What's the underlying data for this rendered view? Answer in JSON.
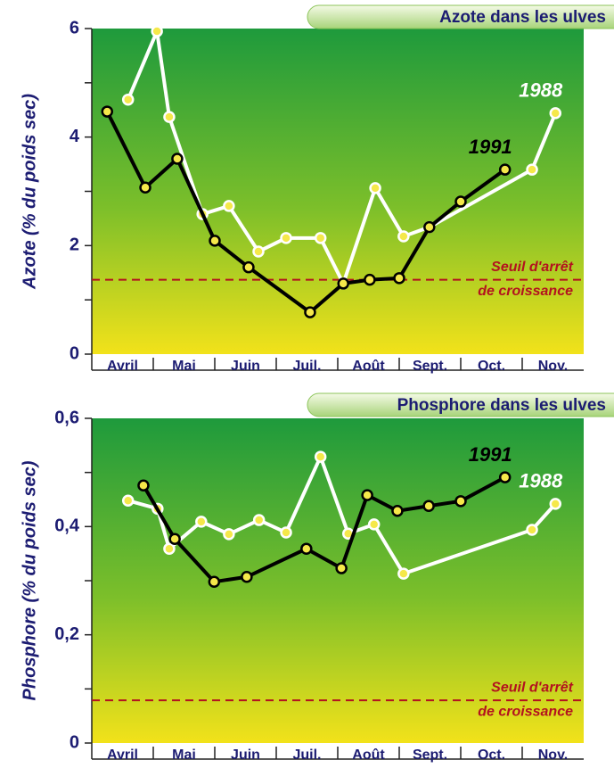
{
  "chart_data": [
    {
      "type": "line",
      "title": "Azote dans les ulves",
      "ylabel": "Azote (% du poids sec)",
      "categories": [
        "Avril",
        "Mai",
        "Juin",
        "Juil.",
        "Août",
        "Sept.",
        "Oct.",
        "Nov."
      ],
      "xlim": [
        0,
        8
      ],
      "ylim": [
        0,
        6
      ],
      "yticks": [
        0,
        2,
        4,
        6
      ],
      "threshold": 1.37,
      "threshold_label": [
        "Seuil d'arrêt",
        "de croissance"
      ],
      "series": [
        {
          "name": "1988",
          "color": "#ffffff",
          "x": [
            0.59,
            1.06,
            1.26,
            1.8,
            2.23,
            2.71,
            3.16,
            3.72,
            4.09,
            4.61,
            5.07,
            5.49,
            7.16,
            7.54
          ],
          "values": [
            4.69,
            5.95,
            4.37,
            2.58,
            2.73,
            1.89,
            2.14,
            2.14,
            1.3,
            3.06,
            2.17,
            2.34,
            3.4,
            4.44
          ]
        },
        {
          "name": "1991",
          "color": "#000000",
          "x": [
            0.25,
            0.87,
            1.39,
            2.0,
            2.55,
            3.55,
            4.09,
            4.52,
            5.0,
            5.49,
            6.0,
            6.72
          ],
          "values": [
            4.47,
            3.07,
            3.6,
            2.09,
            1.6,
            0.77,
            1.3,
            1.37,
            1.4,
            2.34,
            2.81,
            3.4
          ]
        }
      ]
    },
    {
      "type": "line",
      "title": "Phosphore dans les ulves",
      "ylabel": "Phosphore (% du poids sec)",
      "categories": [
        "Avril",
        "Mai",
        "Juin",
        "Juil.",
        "Août",
        "Sept.",
        "Oct.",
        "Nov."
      ],
      "xlim": [
        0,
        8
      ],
      "ylim": [
        0,
        0.6
      ],
      "yticks": [
        0,
        {
          "value": 0.2,
          "label": "0,2"
        },
        {
          "value": 0.4,
          "label": "0,4"
        },
        {
          "value": 0.6,
          "label": "0,6"
        }
      ],
      "threshold": 0.079,
      "threshold_label": [
        "Seuil d'arrêt",
        "de croissance"
      ],
      "series": [
        {
          "name": "1988",
          "color": "#ffffff",
          "x": [
            0.59,
            1.07,
            1.26,
            1.78,
            2.23,
            2.72,
            3.16,
            3.72,
            4.17,
            4.59,
            5.07,
            7.16,
            7.54
          ],
          "values": [
            0.448,
            0.433,
            0.359,
            0.409,
            0.386,
            0.412,
            0.389,
            0.529,
            0.387,
            0.404,
            0.313,
            0.394,
            0.442
          ]
        },
        {
          "name": "1991",
          "color": "#000000",
          "x": [
            0.84,
            1.35,
            1.99,
            2.52,
            3.49,
            4.06,
            4.48,
            4.97,
            5.48,
            6.0,
            6.72
          ],
          "values": [
            0.476,
            0.377,
            0.298,
            0.307,
            0.359,
            0.323,
            0.458,
            0.429,
            0.438,
            0.447,
            0.491
          ]
        }
      ]
    }
  ]
}
